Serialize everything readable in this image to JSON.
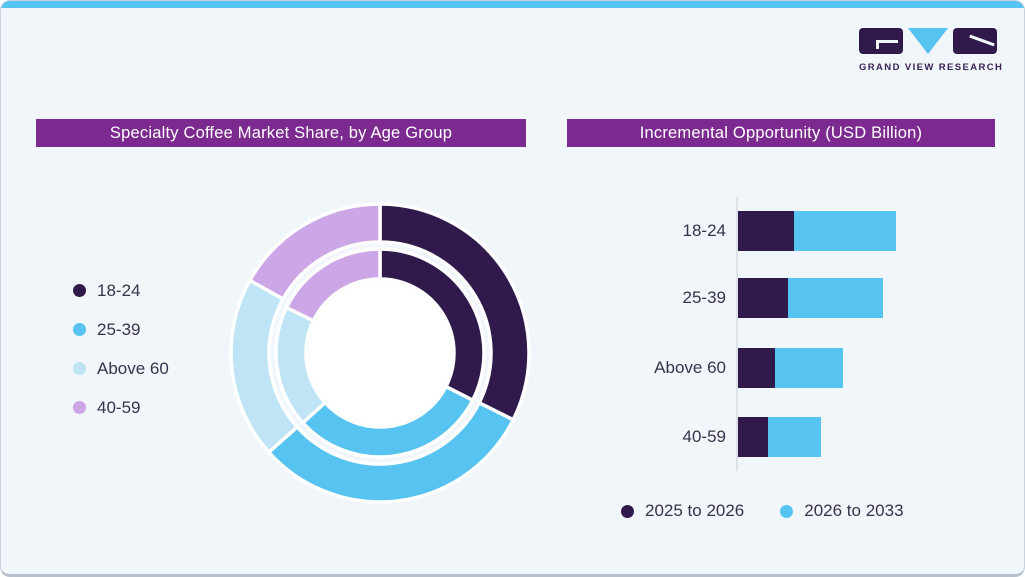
{
  "brand": {
    "name": "GRAND VIEW RESEARCH"
  },
  "colors": {
    "dark_purple": "#301A4B",
    "bright_blue": "#56C3F0",
    "pale_blue": "#BFE4F6",
    "lavender": "#CDA6E8",
    "banner_purple": "#7C2A8F",
    "card_bg": "#F0F6FA",
    "top_strip": "#56C3F0",
    "text": "#38324C",
    "axis_line": "#DCE2E8",
    "logo_text": "#3A2156"
  },
  "left_panel": {
    "title": "Specialty Coffee Market Share, by Age Group",
    "legend": [
      {
        "label": "18-24",
        "color": "#301A4B"
      },
      {
        "label": "25-39",
        "color": "#56C3F0"
      },
      {
        "label": "Above 60",
        "color": "#BFE4F6"
      },
      {
        "label": "40-59",
        "color": "#CDA6E8"
      }
    ]
  },
  "right_panel": {
    "title": "Incremental Opportunity (USD Billion)",
    "legend": [
      {
        "label": "2025 to 2026",
        "color": "#301A4B"
      },
      {
        "label": "2026 to 2033",
        "color": "#56C3F0"
      }
    ]
  },
  "chart_data": [
    {
      "type": "pie",
      "subtype": "double-ring donut",
      "title": "Specialty Coffee Market Share, by Age Group",
      "categories": [
        "18-24",
        "25-39",
        "Above 60",
        "40-59"
      ],
      "colors": [
        "#301A4B",
        "#56C3F0",
        "#BFE4F6",
        "#CDA6E8"
      ],
      "start_angle_deg": 0,
      "direction": "clockwise",
      "values_are_estimated_percent": true,
      "rings": [
        {
          "name": "outer",
          "values": [
            32.4,
            31.0,
            19.7,
            16.9
          ]
        },
        {
          "name": "inner",
          "values": [
            32.5,
            30.8,
            18.9,
            17.8
          ]
        }
      ],
      "legend_position": "left",
      "data_labels_shown": false
    },
    {
      "type": "bar",
      "orientation": "horizontal",
      "stacked": true,
      "title": "Incremental Opportunity (USD Billion)",
      "categories": [
        "18-24",
        "25-39",
        "Above 60",
        "40-59"
      ],
      "series": [
        {
          "name": "2025 to 2026",
          "color": "#301A4B",
          "values": [
            5.6,
            5.0,
            3.7,
            3.0
          ]
        },
        {
          "name": "2026 to 2033",
          "color": "#56C3F0",
          "values": [
            10.2,
            9.5,
            6.8,
            5.3
          ]
        }
      ],
      "values_are_estimated_relative_units": true,
      "value_axis_labels_shown": false,
      "grid": false,
      "legend_position": "bottom"
    }
  ]
}
